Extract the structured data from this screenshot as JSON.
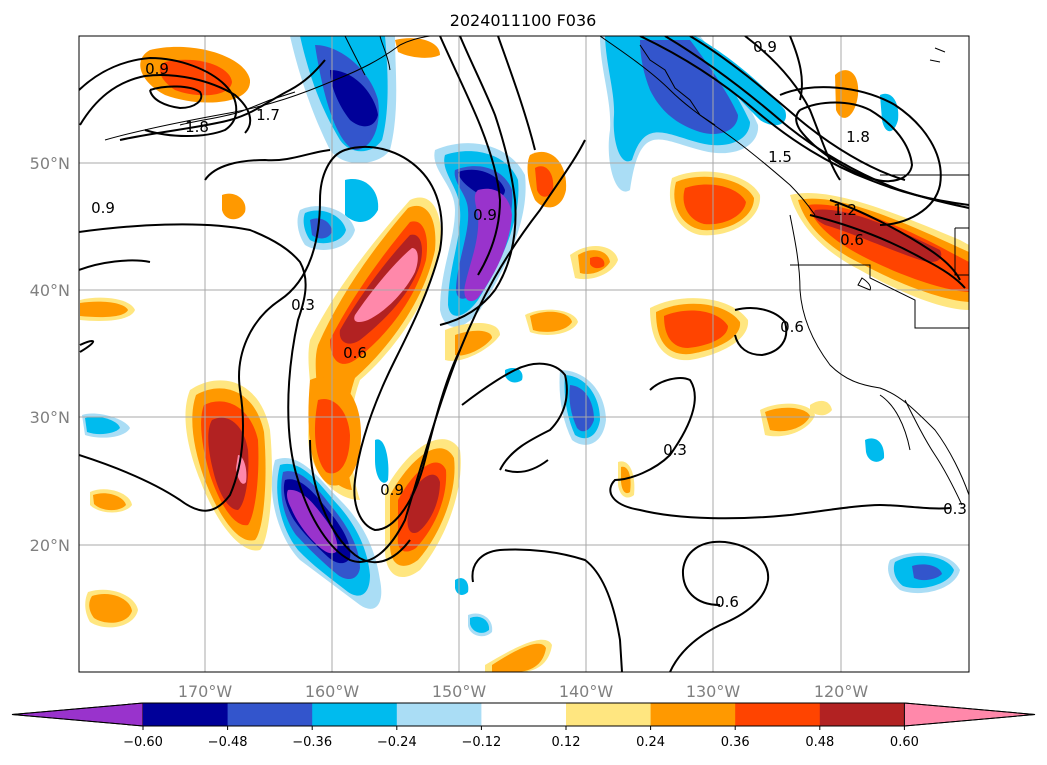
{
  "title": "2024011100 F036",
  "map": {
    "lat_labels": [
      "50°N",
      "40°N",
      "30°N",
      "20°N"
    ],
    "lon_labels": [
      "170°W",
      "160°W",
      "150°W",
      "140°W",
      "130°W",
      "120°W"
    ],
    "contour_labels": [
      "0.9",
      "1.8",
      "1.7",
      "0.9",
      "0.3",
      "0.6",
      "0.9",
      "0.9",
      "0.9",
      "1.8",
      "1.5",
      "1.2",
      "0.6",
      "0.6",
      "0.3",
      "0.6",
      "0.3"
    ]
  },
  "colorbar": {
    "ticks": [
      "−0.60",
      "−0.48",
      "−0.36",
      "−0.24",
      "−0.12",
      "0.12",
      "0.24",
      "0.36",
      "0.48",
      "0.60"
    ],
    "colors": [
      "#9933cc",
      "#000099",
      "#3355cc",
      "#00bbee",
      "#aaddf5",
      "#ffffff",
      "#ffe680",
      "#ff9900",
      "#ff4400",
      "#b22222",
      "#ff88aa"
    ]
  }
}
